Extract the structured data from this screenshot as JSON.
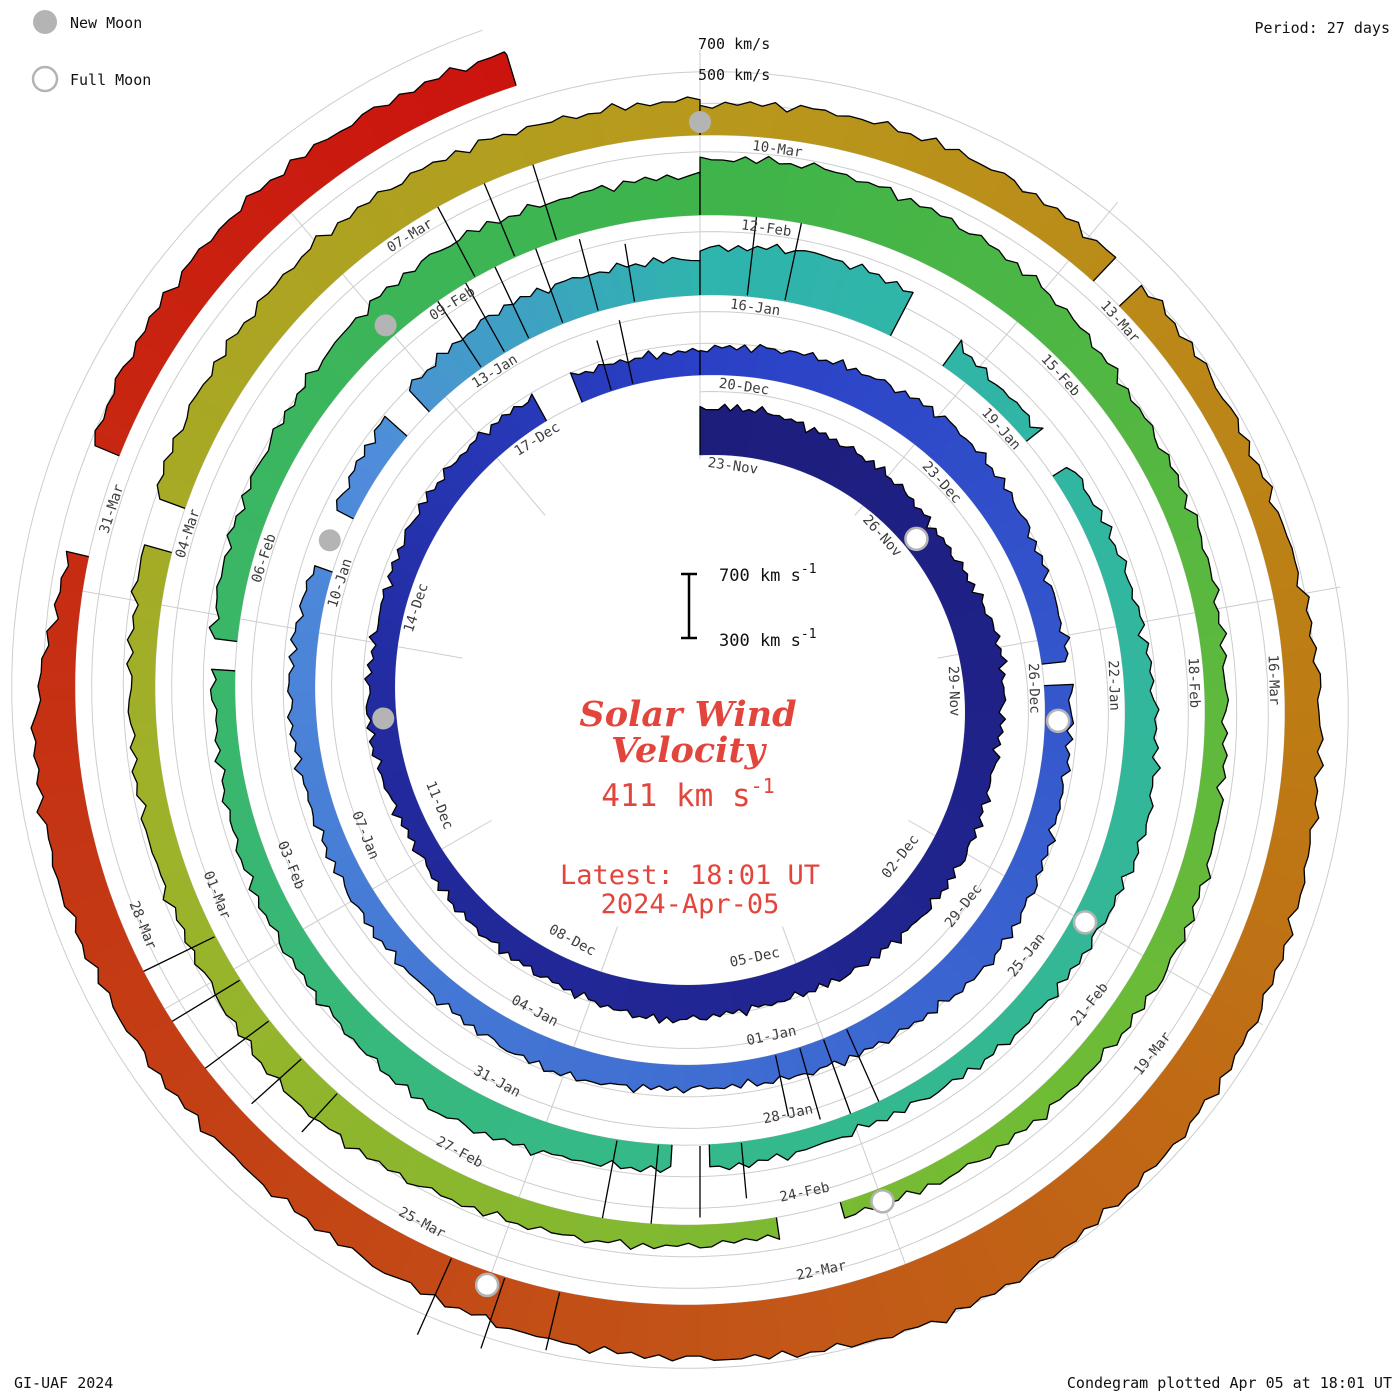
{
  "header": {
    "period_label": "Period: 27 days"
  },
  "legend": {
    "new_moon": "New Moon",
    "full_moon": "Full Moon",
    "moon_color": "#b4b4b4"
  },
  "footer": {
    "left": "GI-UAF 2024",
    "right": "Condegram plotted Apr 05 at 18:01 UT"
  },
  "grid_labels": {
    "outer_700": "700 km/s",
    "outer_500": "500 km/s"
  },
  "center": {
    "accent_color": "#e2453c",
    "scale_top_base": "700 km s",
    "scale_top_sup": "-1",
    "scale_bottom_base": "300 km s",
    "scale_bottom_sup": "-1",
    "title_line1": "Solar Wind",
    "title_line2": "Velocity",
    "current_value_base": "411 km s",
    "current_value_sup": "-1",
    "latest_line1": "Latest: 18:01 UT",
    "latest_line2": "2024-Apr-05"
  },
  "chart_data": {
    "type": "spiral_polar_condegram",
    "title": "Solar Wind Velocity",
    "direction": "clockwise_from_top",
    "period_days": 27,
    "tick_interval_days": 3,
    "end_day": 133.75,
    "velocity_axis": {
      "baseline_kms": 300,
      "grid_kms": [
        500,
        700
      ],
      "units": "km/s"
    },
    "latest_value_kms": 411,
    "latest_time": "18:01 UT",
    "latest_date": "2024-Apr-05",
    "values_estimated": true,
    "color_stops": [
      [
        0,
        "#1d1d7c"
      ],
      [
        20,
        "#222a9e"
      ],
      [
        27,
        "#2a40c6"
      ],
      [
        38,
        "#3b66d0"
      ],
      [
        50,
        "#4f8cda"
      ],
      [
        54,
        "#2fb4ae"
      ],
      [
        68,
        "#35b989"
      ],
      [
        81,
        "#3eb44a"
      ],
      [
        92,
        "#72bc34"
      ],
      [
        100,
        "#9cb32a"
      ],
      [
        108,
        "#b8991c"
      ],
      [
        115,
        "#bd7b14"
      ],
      [
        121,
        "#c25617"
      ],
      [
        127,
        "#c43714"
      ],
      [
        134,
        "#cc120e"
      ]
    ],
    "rings": [
      {
        "labels": [
          "23-Nov",
          "26-Nov",
          "29-Nov",
          "02-Dec",
          "05-Dec",
          "08-Dec",
          "11-Dec",
          "14-Dec",
          "17-Dec"
        ],
        "values": [
          585,
          600,
          570,
          540,
          510,
          530,
          560,
          540,
          510,
          520,
          530,
          510,
          490,
          500,
          520,
          490,
          470,
          450,
          440,
          455,
          470,
          460,
          450,
          465,
          480,
          470,
          460
        ],
        "gaps": [
          [
            24.8,
            25.4
          ]
        ],
        "spikes": [
          25.8,
          26.1
        ]
      },
      {
        "labels": [
          "20-Dec",
          "23-Dec",
          "26-Dec",
          "29-Dec",
          "01-Jan",
          "04-Jan",
          "07-Jan",
          "10-Jan",
          "13-Jan"
        ],
        "values": [
          470,
          490,
          520,
          550,
          520,
          490,
          470,
          455,
          470,
          500,
          530,
          500,
          470,
          450,
          460,
          480,
          470,
          450,
          435,
          445,
          460,
          440,
          420,
          450,
          500,
          560,
          530
        ],
        "gaps": [
          [
            6.3,
            6.6
          ],
          [
            21.7,
            22.3
          ],
          [
            23.4,
            23.8
          ]
        ],
        "spikes": [
          11.7,
          12.0,
          12.3,
          12.6,
          24.5,
          24.8,
          25.1,
          25.5,
          25.9,
          26.3
        ]
      },
      {
        "labels": [
          "16-Jan",
          "19-Jan",
          "22-Jan",
          "25-Jan",
          "28-Jan",
          "31-Jan",
          "03-Feb",
          "06-Feb",
          "09-Feb"
        ],
        "values": [
          590,
          640,
          600,
          430,
          410,
          435,
          465,
          495,
          520,
          490,
          455,
          430,
          415,
          435,
          465,
          495,
          525,
          495,
          465,
          445,
          435,
          455,
          475,
          505,
          535,
          565,
          545
        ],
        "gaps": [
          [
            2.1,
            2.7
          ],
          [
            3.9,
            4.3
          ],
          [
            13.4,
            13.8
          ],
          [
            20.5,
            20.8
          ]
        ],
        "spikes": [
          0.5,
          0.9,
          13.1,
          13.5,
          13.9,
          14.3,
          24.9,
          25.3,
          25.7
        ]
      },
      {
        "labels": [
          "12-Feb",
          "15-Feb",
          "18-Feb",
          "21-Feb",
          "24-Feb",
          "27-Feb",
          "01-Mar",
          "04-Mar",
          "07-Mar"
        ],
        "values": [
          640,
          670,
          620,
          560,
          500,
          465,
          445,
          435,
          455,
          475,
          455,
          425,
          405,
          415,
          435,
          465,
          495,
          515,
          485,
          465,
          455,
          475,
          505,
          535,
          565,
          545,
          525
        ],
        "gaps": [
          [
            12.3,
            12.9
          ],
          [
            21.4,
            21.8
          ]
        ],
        "spikes": [
          16.7,
          17.1,
          17.5,
          17.9,
          18.3
        ]
      },
      {
        "labels": [
          "10-Mar",
          "13-Mar",
          "16-Mar",
          "19-Mar",
          "22-Mar",
          "25-Mar",
          "28-Mar",
          "31-Mar"
        ],
        "values": [
          490,
          510,
          530,
          500,
          475,
          465,
          485,
          525,
          565,
          605,
          655,
          685,
          700,
          665,
          625,
          585,
          555,
          535,
          565,
          595,
          565,
          430,
          490,
          525,
          545,
          525,
          505
        ],
        "gaps": [
          [
            3.2,
            3.5
          ],
          [
            21.2,
            22.0
          ]
        ],
        "spikes": [
          14.5,
          14.9,
          15.3
        ]
      }
    ],
    "moons": {
      "new_days": [
        20,
        49,
        78,
        108
      ],
      "full_days": [
        4,
        34,
        63,
        93,
        123
      ]
    }
  }
}
